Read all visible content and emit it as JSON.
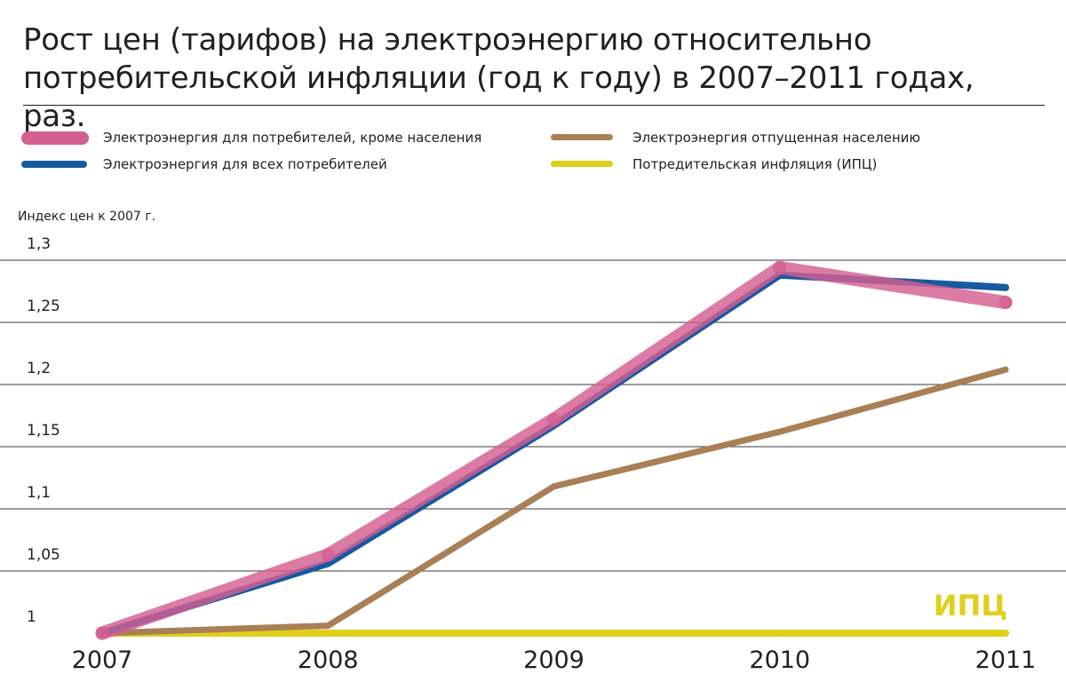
{
  "title": "Рост цен (тарифов) на электроэнергию относительно потребительской инфляции (год к году) в 2007–2011 годах, раз.",
  "legend": [
    {
      "label": "Электроэнергия для потребителей, кроме населения",
      "series": 3
    },
    {
      "label": "Электроэнергия отпущенная населению",
      "series": 1
    },
    {
      "label": "Электроэнергия для всех потребителей",
      "series": 2
    },
    {
      "label": "Потредительская инфляция (ИПЦ)",
      "series": 0
    }
  ],
  "chart_data": {
    "type": "line",
    "title": "Рост цен (тарифов) на электроэнергию относительно потребительской инфляции (год к году) в 2007–2011 годах, раз.",
    "xlabel": "",
    "ylabel": "Индекс цен к 2007 г.",
    "categories": [
      "2007",
      "2008",
      "2009",
      "2010",
      "2011"
    ],
    "ylim": [
      1,
      1.3
    ],
    "yticks": [
      "1",
      "1,05",
      "1,1",
      "1,15",
      "1,2",
      "1,25",
      "1,3"
    ],
    "grid": true,
    "legend_position": "top",
    "series": [
      {
        "name": "Потредительская инфляция (ИПЦ)",
        "color": "#e0cf1b",
        "values": [
          1.0,
          1.0,
          1.0,
          1.0,
          1.0
        ]
      },
      {
        "name": "Электроэнергия отпущенная населению",
        "color": "#a97f56",
        "values": [
          1.0,
          1.006,
          1.118,
          1.162,
          1.212
        ]
      },
      {
        "name": "Электроэнергия для всех потребителей",
        "color": "#1859a0",
        "values": [
          1.0,
          1.056,
          1.167,
          1.288,
          1.278
        ]
      },
      {
        "name": "Электроэнергия для потребителей, кроме населения",
        "color": "#d45f91",
        "values": [
          1.0,
          1.063,
          1.172,
          1.294,
          1.266
        ]
      }
    ],
    "annotations": [
      {
        "text": "ИПЦ",
        "series": 0,
        "color": "#e0cf1b"
      }
    ]
  }
}
